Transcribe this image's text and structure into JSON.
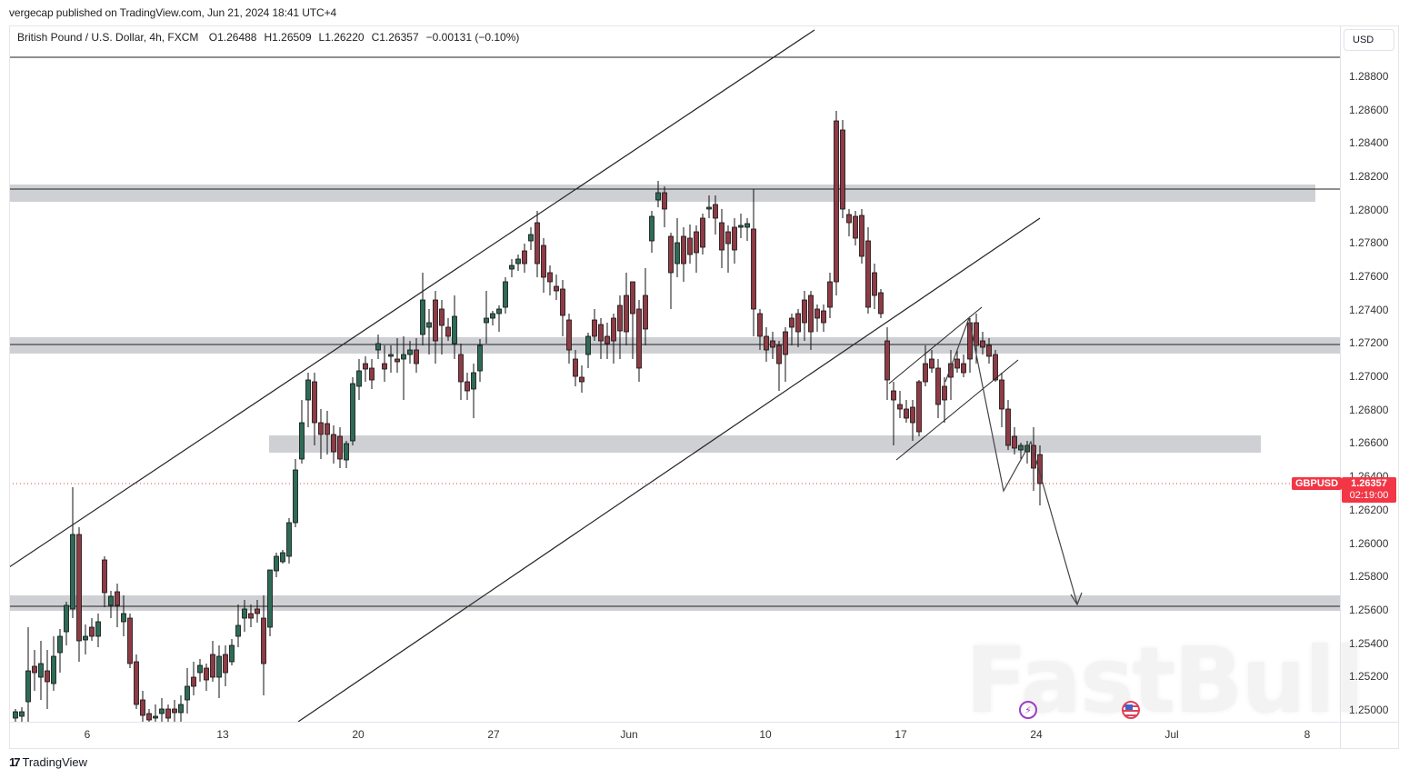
{
  "publisher_line": "vergecap published on TradingView.com, Jun 21, 2024 18:41 UTC+4",
  "legend": {
    "symbol_desc": "British Pound / U.S. Dollar, 4h, FXCM",
    "open": "O1.26488",
    "high": "H1.26509",
    "low": "L1.26220",
    "close": "C1.26357",
    "change": "−0.00131 (−0.10%)"
  },
  "price_axis": {
    "currency": "USD",
    "ticks": [
      "1.28800",
      "1.28600",
      "1.28400",
      "1.28200",
      "1.28000",
      "1.27800",
      "1.27600",
      "1.27400",
      "1.27200",
      "1.27000",
      "1.26800",
      "1.26600",
      "1.26400",
      "1.26200",
      "1.26000",
      "1.25800",
      "1.25600",
      "1.25400",
      "1.25200",
      "1.25000"
    ]
  },
  "time_axis": {
    "ticks": [
      "6",
      "13",
      "20",
      "27",
      "Jun",
      "10",
      "17",
      "24",
      "Jul",
      "8"
    ]
  },
  "last_price": {
    "symbol": "GBPUSD",
    "price": "1.26357",
    "countdown": "02:19:00",
    "color": "#f23645"
  },
  "colors": {
    "up_candle": "#2e6b56",
    "down_candle": "#8e3b45",
    "zone": "#cfd0d4",
    "trendline": "#222222"
  },
  "watermark": "FastBull",
  "footer": {
    "brand": "TradingView",
    "logo_mark": "17"
  },
  "chart_data": {
    "type": "candlestick",
    "title": "British Pound / U.S. Dollar, 4h, FXCM",
    "ohlc_last": {
      "open": 1.26488,
      "high": 1.26509,
      "low": 1.2622,
      "close": 1.26357,
      "change": -0.00131,
      "change_pct": -0.1
    },
    "ylim": [
      1.2495,
      1.2905
    ],
    "y_ticks": [
      1.288,
      1.286,
      1.284,
      1.282,
      1.28,
      1.278,
      1.276,
      1.274,
      1.272,
      1.27,
      1.268,
      1.266,
      1.264,
      1.262,
      1.26,
      1.258,
      1.256,
      1.254,
      1.252,
      1.25
    ],
    "x_ticks": [
      "6",
      "13",
      "20",
      "27",
      "Jun",
      "10",
      "17",
      "24",
      "Jul",
      "8"
    ],
    "support_resistance_zones": [
      {
        "top": 1.2815,
        "bottom": 1.2805,
        "line": 1.2813
      },
      {
        "top": 1.2723,
        "bottom": 1.2713,
        "line": 1.2719
      },
      {
        "top": 1.2665,
        "bottom": 1.2655,
        "line": null
      },
      {
        "top": 1.2568,
        "bottom": 1.256,
        "line": 1.2562
      }
    ],
    "horizontal_line": 1.289,
    "ascending_channel": {
      "upper": "from May 2 ~1.2585 to Jun 5 ~1.2895",
      "lower": "from May 16 ~1.2495 to Jun 22 ~1.2795"
    },
    "projection": {
      "from": 1.266,
      "to": 1.2562,
      "direction": "down"
    },
    "last_price": 1.26357,
    "approx_closes": [
      {
        "date": "May 2",
        "close": 1.2515
      },
      {
        "date": "May 3",
        "close": 1.2545
      },
      {
        "date": "May 6",
        "close": 1.256
      },
      {
        "date": "May 8",
        "close": 1.2545
      },
      {
        "date": "May 9",
        "close": 1.253
      },
      {
        "date": "May 10",
        "close": 1.2528
      },
      {
        "date": "May 13",
        "close": 1.2555
      },
      {
        "date": "May 14",
        "close": 1.256
      },
      {
        "date": "May 15",
        "close": 1.262
      },
      {
        "date": "May 16",
        "close": 1.268
      },
      {
        "date": "May 17",
        "close": 1.266
      },
      {
        "date": "May 20",
        "close": 1.27
      },
      {
        "date": "May 21",
        "close": 1.2712
      },
      {
        "date": "May 22",
        "close": 1.272
      },
      {
        "date": "May 23",
        "close": 1.271
      },
      {
        "date": "May 24",
        "close": 1.2735
      },
      {
        "date": "May 27",
        "close": 1.272
      },
      {
        "date": "May 28",
        "close": 1.277
      },
      {
        "date": "May 29",
        "close": 1.276
      },
      {
        "date": "May 30",
        "close": 1.273
      },
      {
        "date": "May 31",
        "close": 1.274
      },
      {
        "date": "Jun 3",
        "close": 1.279
      },
      {
        "date": "Jun 4",
        "close": 1.278
      },
      {
        "date": "Jun 5",
        "close": 1.279
      },
      {
        "date": "Jun 6",
        "close": 1.279
      },
      {
        "date": "Jun 7",
        "close": 1.272
      },
      {
        "date": "Jun 10",
        "close": 1.271
      },
      {
        "date": "Jun 11",
        "close": 1.274
      },
      {
        "date": "Jun 12",
        "close": 1.284
      },
      {
        "date": "Jun 13",
        "close": 1.2795
      },
      {
        "date": "Jun 14",
        "close": 1.269
      },
      {
        "date": "Jun 17",
        "close": 1.271
      },
      {
        "date": "Jun 18",
        "close": 1.273
      },
      {
        "date": "Jun 19",
        "close": 1.272
      },
      {
        "date": "Jun 20",
        "close": 1.266
      },
      {
        "date": "Jun 21",
        "close": 1.26357
      }
    ]
  }
}
